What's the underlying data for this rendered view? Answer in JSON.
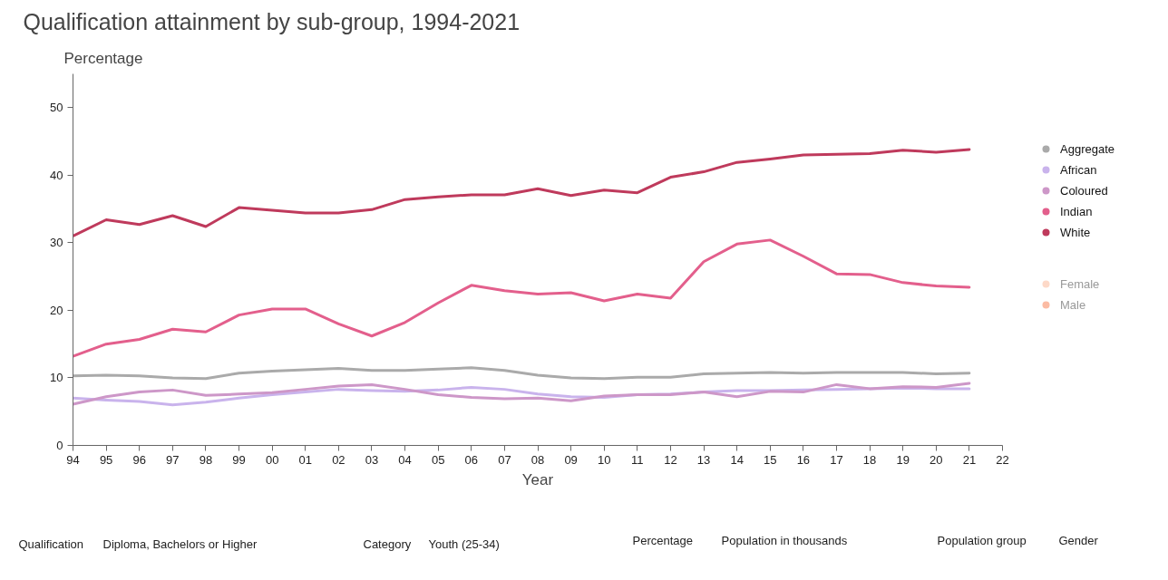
{
  "chart_data": {
    "type": "line",
    "title": "Qualification attainment by sub-group, 1994-2021",
    "ylabel": "Percentage",
    "xlabel": "Year",
    "x": [
      1994,
      1995,
      1996,
      1997,
      1998,
      1999,
      2000,
      2001,
      2002,
      2003,
      2004,
      2005,
      2006,
      2007,
      2008,
      2009,
      2010,
      2011,
      2012,
      2013,
      2014,
      2015,
      2016,
      2017,
      2018,
      2019,
      2020,
      2021
    ],
    "series": [
      {
        "name": "Aggregate",
        "color": "#aaaaaa",
        "values": [
          10.3,
          10.4,
          10.3,
          10.0,
          9.9,
          10.7,
          11.0,
          11.2,
          11.4,
          11.1,
          11.1,
          11.3,
          11.5,
          11.1,
          10.4,
          10.0,
          9.9,
          10.1,
          10.1,
          10.6,
          10.7,
          10.8,
          10.7,
          10.8,
          10.8,
          10.8,
          10.6,
          10.7
        ]
      },
      {
        "name": "African",
        "color": "#c9b3ec",
        "values": [
          7.0,
          6.7,
          6.5,
          6.0,
          6.4,
          7.0,
          7.5,
          7.9,
          8.3,
          8.1,
          8.0,
          8.2,
          8.6,
          8.3,
          7.6,
          7.2,
          7.1,
          7.5,
          7.6,
          7.9,
          8.1,
          8.1,
          8.2,
          8.3,
          8.4,
          8.5,
          8.4,
          8.4
        ]
      },
      {
        "name": "Coloured",
        "color": "#cd97c8",
        "values": [
          6.1,
          7.2,
          7.9,
          8.2,
          7.4,
          7.6,
          7.8,
          8.3,
          8.8,
          9.0,
          8.3,
          7.5,
          7.1,
          6.9,
          7.0,
          6.6,
          7.3,
          7.5,
          7.5,
          7.9,
          7.2,
          8.0,
          7.9,
          9.0,
          8.4,
          8.7,
          8.6,
          9.2
        ]
      },
      {
        "name": "Indian",
        "color": "#e35f8c",
        "values": [
          13.2,
          15.0,
          15.7,
          17.2,
          16.8,
          19.3,
          20.2,
          20.2,
          18.0,
          16.2,
          18.2,
          21.1,
          23.7,
          22.9,
          22.4,
          22.6,
          21.4,
          22.4,
          21.8,
          27.2,
          29.8,
          30.4,
          28.0,
          25.4,
          25.3,
          24.1,
          23.6,
          23.4
        ]
      },
      {
        "name": "White",
        "color": "#bf3a5c",
        "values": [
          31.0,
          33.4,
          32.7,
          34.0,
          32.4,
          35.2,
          34.8,
          34.4,
          34.4,
          34.9,
          36.4,
          36.8,
          37.1,
          37.1,
          38.0,
          37.0,
          37.8,
          37.4,
          39.7,
          40.5,
          41.9,
          42.4,
          43.0,
          43.1,
          43.2,
          43.7,
          43.4,
          43.8
        ]
      },
      {
        "name": "Female",
        "color": "#fdd9c8",
        "values": [
          null,
          null,
          null,
          null,
          null,
          null,
          null,
          null,
          null,
          null,
          null,
          null,
          null,
          null,
          null,
          null,
          null,
          null,
          null,
          null,
          null,
          null,
          null,
          null,
          null,
          null,
          null,
          null
        ]
      },
      {
        "name": "Male",
        "color": "#fbbba3",
        "values": [
          null,
          null,
          null,
          null,
          null,
          null,
          null,
          null,
          null,
          null,
          null,
          null,
          null,
          null,
          null,
          null,
          null,
          null,
          null,
          null,
          null,
          null,
          null,
          null,
          null,
          null,
          null,
          null
        ]
      }
    ],
    "xlim": [
      1994,
      2022
    ],
    "xticks": [
      {
        "value": 1994,
        "label": "94"
      },
      {
        "value": 1995,
        "label": "95"
      },
      {
        "value": 1996,
        "label": "96"
      },
      {
        "value": 1997,
        "label": "97"
      },
      {
        "value": 1998,
        "label": "98"
      },
      {
        "value": 1999,
        "label": "99"
      },
      {
        "value": 2000,
        "label": "00"
      },
      {
        "value": 2001,
        "label": "01"
      },
      {
        "value": 2002,
        "label": "02"
      },
      {
        "value": 2003,
        "label": "03"
      },
      {
        "value": 2004,
        "label": "04"
      },
      {
        "value": 2005,
        "label": "05"
      },
      {
        "value": 2006,
        "label": "06"
      },
      {
        "value": 2007,
        "label": "07"
      },
      {
        "value": 2008,
        "label": "08"
      },
      {
        "value": 2009,
        "label": "09"
      },
      {
        "value": 2010,
        "label": "10"
      },
      {
        "value": 2011,
        "label": "11"
      },
      {
        "value": 2012,
        "label": "12"
      },
      {
        "value": 2013,
        "label": "13"
      },
      {
        "value": 2014,
        "label": "14"
      },
      {
        "value": 2015,
        "label": "15"
      },
      {
        "value": 2016,
        "label": "16"
      },
      {
        "value": 2017,
        "label": "17"
      },
      {
        "value": 2018,
        "label": "18"
      },
      {
        "value": 2019,
        "label": "19"
      },
      {
        "value": 2020,
        "label": "20"
      },
      {
        "value": 2021,
        "label": "21"
      },
      {
        "value": 2022,
        "label": "22"
      }
    ],
    "ylim": [
      0,
      55
    ],
    "yticks": [
      0,
      10,
      20,
      30,
      40,
      50
    ],
    "grid": false,
    "legend": "right",
    "annotations": [
      "Qualification",
      "Diploma, Bachelors or Higher",
      "Category",
      "Youth (25-34)",
      "Percentage",
      "Population in thousands",
      "Population group",
      "Gender"
    ]
  }
}
